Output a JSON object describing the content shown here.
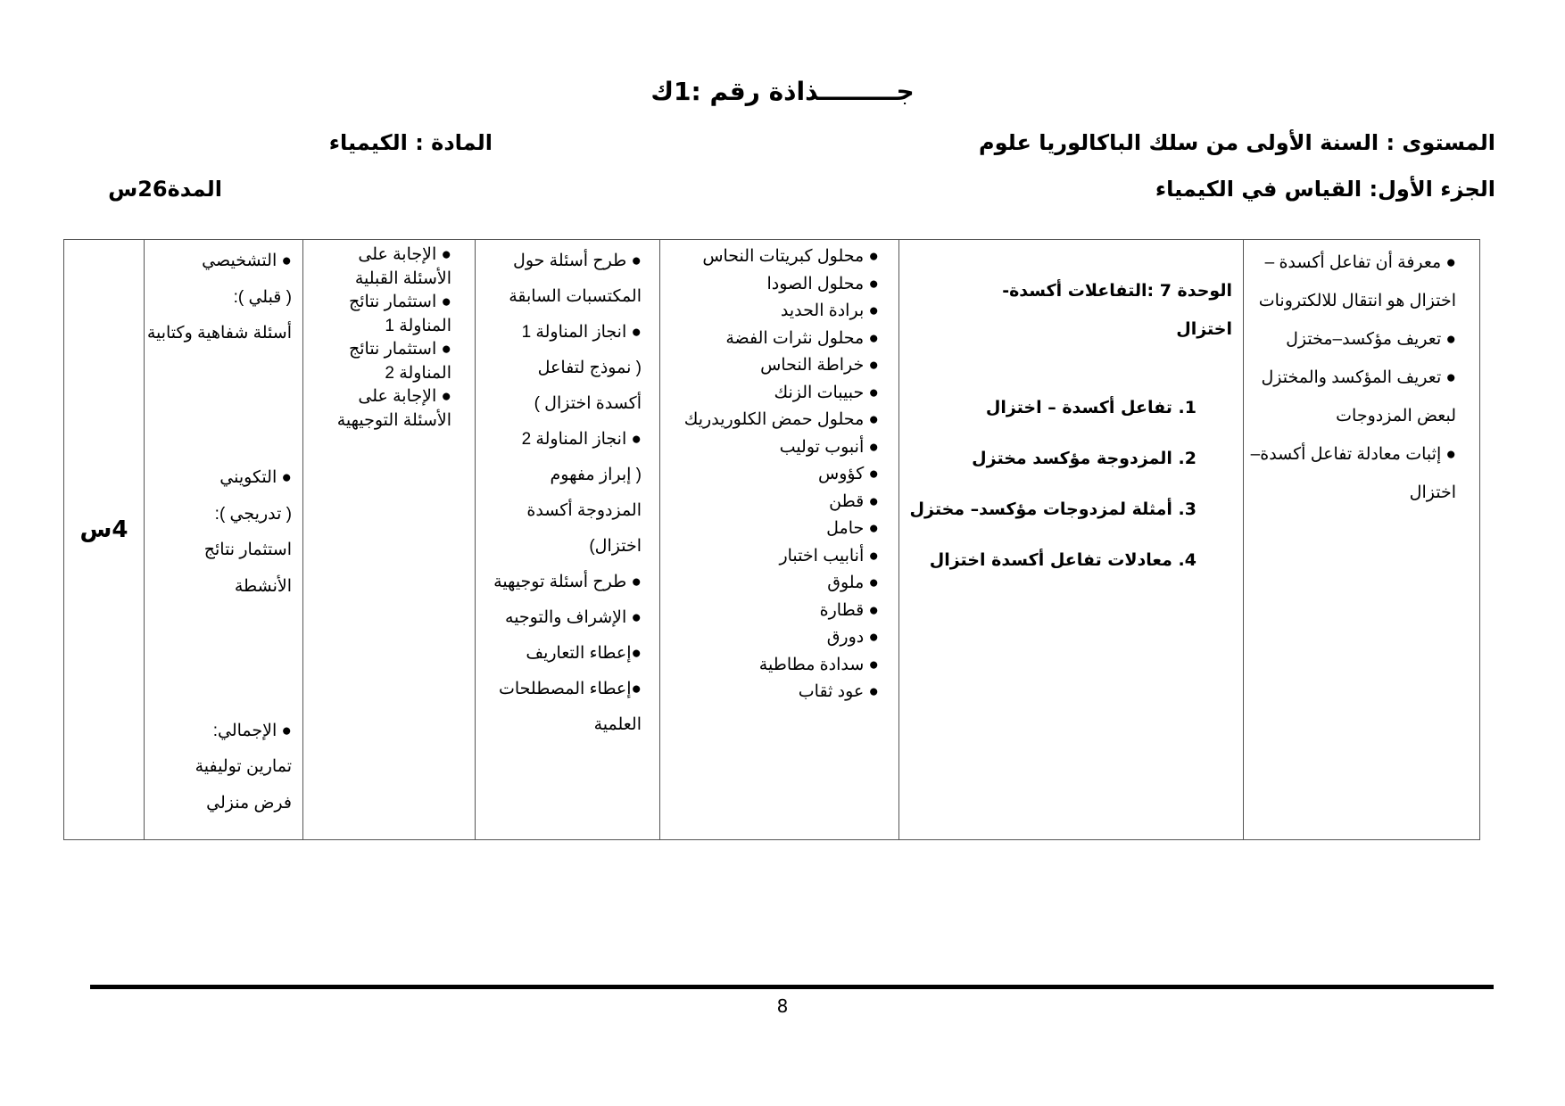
{
  "header": {
    "title": "جـــــــــذاذة رقم :1ك",
    "level": "المستوى : السنة الأولى من سلك الباكالوريا علوم",
    "subject": "المادة : الكيمياء",
    "part": "الجزء الأول: القياس في الكيمياء",
    "duration": "المدة26س"
  },
  "table": {
    "objectives": [
      "● معرفة أن تفاعل أكسدة –",
      "اختزال هو انتقال للالكترونات",
      "● تعريف مؤكسد–مختزل",
      "● تعريف المؤكسد والمختزل",
      "لبعض المزدوجات",
      "● إثبات معادلة تفاعل أكسدة–",
      "اختزال"
    ],
    "unit_title": [
      "الوحدة 7 :التفاعلات أكسدة-",
      "اختزال"
    ],
    "unit_items": [
      "1.  تفاعل أكسدة – اختزال",
      "2.  المزدوجة مؤكسد مختزل",
      "3.  أمثلة لمزدوجات مؤكسد– مختزل",
      "4.  معادلات تفاعل أكسدة اختزال"
    ],
    "materials": [
      "● محلول كبريتات النحاس",
      "● محلول الصودا",
      "● برادة الحديد",
      "● محلول نثرات الفضة",
      "● خراطة النحاس",
      "● حبيبات الزنك",
      "● محلول حمض الكلوريدريك",
      "● أنبوب توليب",
      "● كؤوس",
      "● قطن",
      "● حامل",
      "● أنابيب اختبار",
      "● ملوق",
      "● قطارة",
      "● دورق",
      "● سدادة مطاطية",
      "● عود ثقاب"
    ],
    "teacher_activities": [
      "● طرح أسئلة حول",
      "المكتسبات السابقة",
      "● انجاز المناولة 1",
      "( نموذج لتفاعل",
      "أكسدة اختزال )",
      "● انجاز المناولة 2",
      "( إبراز مفهوم",
      "المزدوجة أكسدة",
      "اختزال)",
      "● طرح أسئلة توجيهية",
      "● الإشراف والتوجيه",
      "●إعطاء التعاريف",
      "●إعطاء المصطلحات",
      "العلمية"
    ],
    "learner_activities": [
      "● الإجابة على",
      "الأسئلة القبلية",
      "● استثمار نتائج",
      "المناولة 1",
      "● استثمار نتائج",
      "المناولة 2",
      "● الإجابة على",
      "الأسئلة التوجيهية"
    ],
    "evaluation": [
      "● التشخيصي",
      "( قبلي ):",
      "أسئلة شفاهية وكتابية",
      "",
      "",
      "",
      "● التكويني",
      "( تدريجي ):",
      "استثمار نتائج",
      "الأنشطة",
      "",
      "",
      "",
      "● الإجمالي:",
      "تمارين توليفية",
      "فرض منزلي"
    ],
    "time": "4س"
  },
  "footer": {
    "page_number": "8"
  }
}
